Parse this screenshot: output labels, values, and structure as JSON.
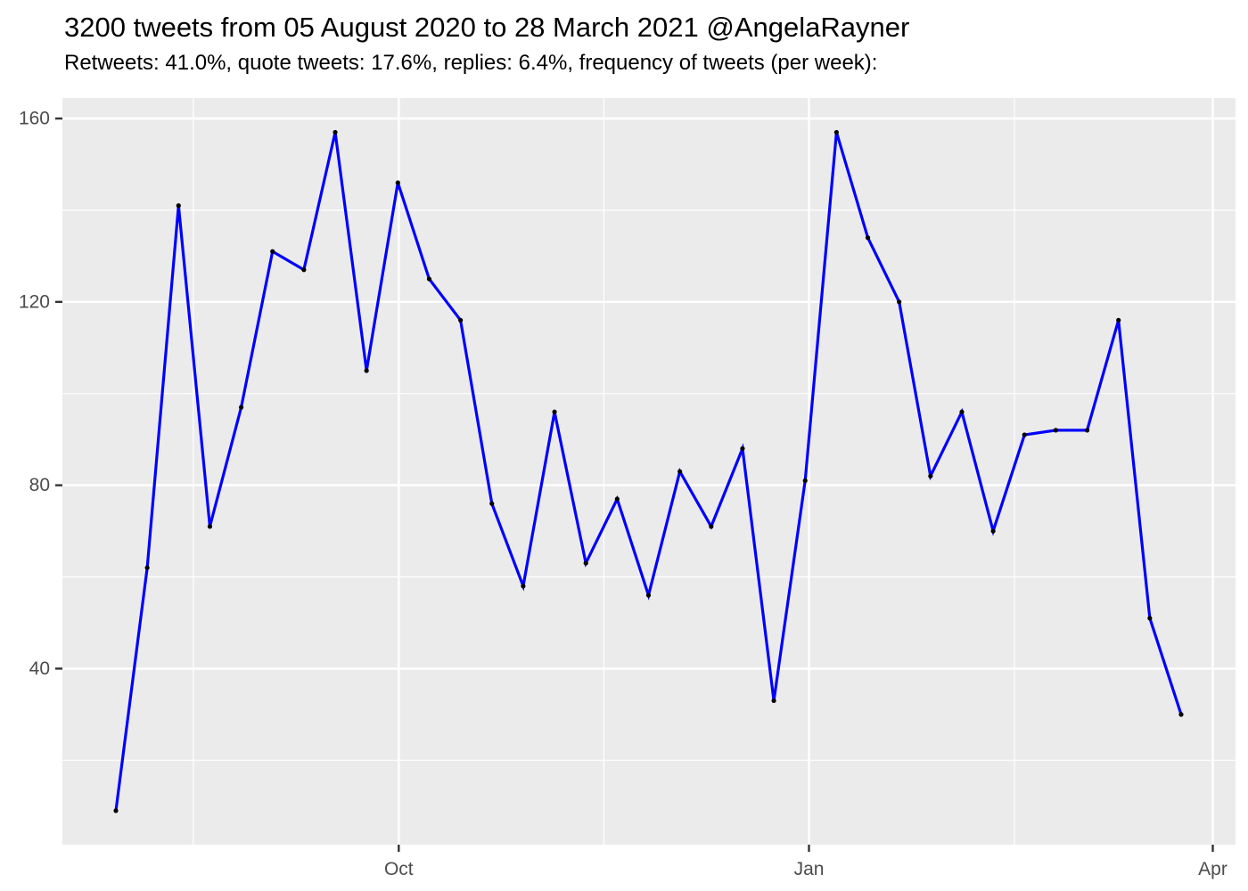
{
  "header": {
    "title": "3200 tweets from 05 August 2020 to 28 March 2021 @AngelaRayner",
    "subtitle": "Retweets: 41.0%, quote tweets: 17.6%, replies: 6.4%, frequency of tweets (per week):"
  },
  "chart_data": {
    "type": "line",
    "title": "3200 tweets from 05 August 2020 to 28 March 2021 @AngelaRayner",
    "subtitle": "Retweets: 41.0%, quote tweets: 17.6%, replies: 6.4%, frequency of tweets (per week):",
    "series": [
      {
        "name": "tweets-per-week",
        "values": [
          9,
          62,
          141,
          71,
          97,
          131,
          127,
          157,
          105,
          146,
          125,
          116,
          76,
          58,
          96,
          63,
          77,
          56,
          83,
          71,
          88,
          33,
          81,
          157,
          134,
          120,
          82,
          96,
          70,
          91,
          92,
          92,
          116,
          51,
          30
        ]
      }
    ],
    "xlabel": "",
    "ylabel": "",
    "x_axis": {
      "tick_labels": [
        "Oct",
        "Jan",
        "Apr"
      ]
    },
    "y_axis": {
      "ticks": [
        40,
        80,
        120,
        160
      ],
      "tick_labels": [
        "40",
        "80",
        "120",
        "160"
      ],
      "minor_ticks": [
        20,
        60,
        100,
        140
      ],
      "ylim": [
        1,
        164
      ]
    },
    "legend": "none",
    "grid": true,
    "style": {
      "line_color": "#0000FF",
      "point_color": "#000000",
      "panel_bg": "#EBEBEB",
      "grid_color": "#FFFFFF",
      "axis_text_color": "#4D4D4D",
      "tick_mark_color": "#333333"
    }
  }
}
